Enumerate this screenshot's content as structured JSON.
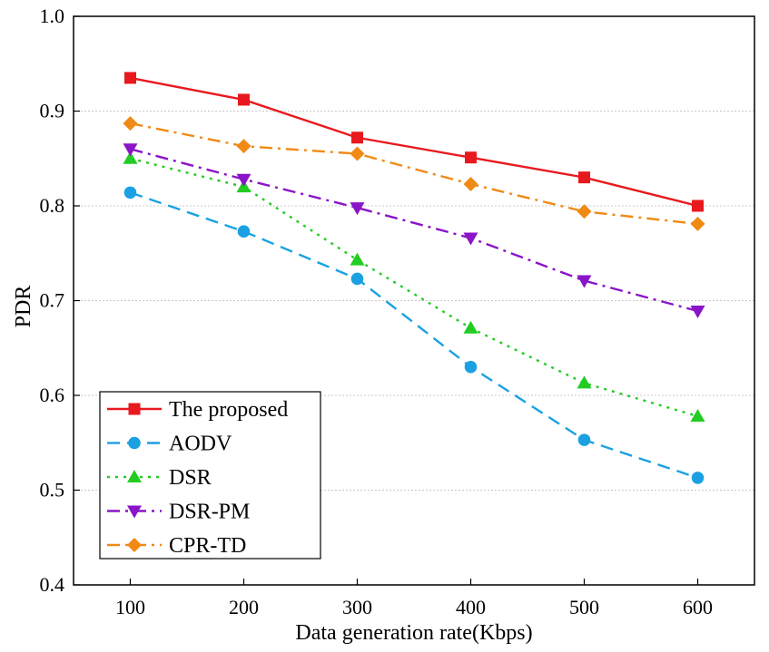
{
  "chart_data": {
    "type": "line",
    "title": "",
    "xlabel": "Data generation rate(Kbps)",
    "ylabel": "PDR",
    "x": [
      100,
      200,
      300,
      400,
      500,
      600
    ],
    "xticks": [
      "100",
      "200",
      "300",
      "400",
      "500",
      "600"
    ],
    "ylim": [
      0.4,
      1.0
    ],
    "yticks": [
      "0.4",
      "0.5",
      "0.6",
      "0.7",
      "0.8",
      "0.9",
      "1.0"
    ],
    "grid": true,
    "legend_position": "bottom-left",
    "series": [
      {
        "name": "The proposed",
        "color": "#e8191e",
        "dash": "solid",
        "marker": "square",
        "values": [
          0.935,
          0.912,
          0.872,
          0.851,
          0.83,
          0.8
        ]
      },
      {
        "name": "AODV",
        "color": "#1ba1e2",
        "dash": "dash",
        "marker": "circle",
        "values": [
          0.814,
          0.773,
          0.723,
          0.63,
          0.553,
          0.513
        ]
      },
      {
        "name": "DSR",
        "color": "#22cc22",
        "dash": "dot",
        "marker": "triangle-up",
        "values": [
          0.85,
          0.82,
          0.743,
          0.671,
          0.613,
          0.578
        ]
      },
      {
        "name": "DSR-PM",
        "color": "#8a14c8",
        "dash": "dashdot",
        "marker": "triangle-down",
        "values": [
          0.86,
          0.828,
          0.798,
          0.766,
          0.721,
          0.689
        ]
      },
      {
        "name": "CPR-TD",
        "color": "#f08a14",
        "dash": "dashdot",
        "marker": "diamond",
        "values": [
          0.887,
          0.863,
          0.855,
          0.823,
          0.794,
          0.781
        ]
      }
    ]
  }
}
